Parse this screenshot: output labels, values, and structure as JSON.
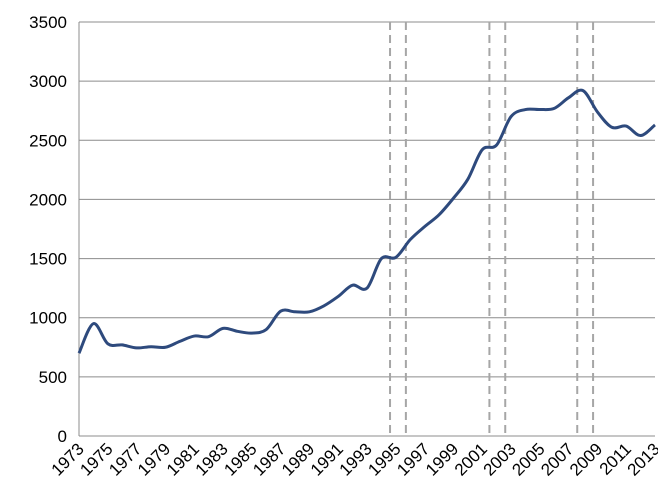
{
  "chart_data": {
    "type": "line",
    "x": [
      1973,
      1974,
      1975,
      1976,
      1977,
      1978,
      1979,
      1980,
      1981,
      1982,
      1983,
      1984,
      1985,
      1986,
      1987,
      1988,
      1989,
      1990,
      1991,
      1992,
      1993,
      1994,
      1995,
      1996,
      1997,
      1998,
      1999,
      2000,
      2001,
      2002,
      2003,
      2004,
      2005,
      2006,
      2007,
      2008,
      2009,
      2010,
      2011,
      2012,
      2013
    ],
    "series": [
      {
        "color": "#2e4a7d",
        "values": [
          700,
          950,
          780,
          770,
          745,
          755,
          750,
          800,
          845,
          840,
          910,
          885,
          870,
          900,
          1055,
          1050,
          1050,
          1100,
          1180,
          1275,
          1250,
          1500,
          1510,
          1660,
          1770,
          1870,
          2010,
          2170,
          2420,
          2460,
          2700,
          2760,
          2760,
          2770,
          2860,
          2920,
          2740,
          2610,
          2620,
          2540,
          2630
        ]
      }
    ],
    "xlim": [
      1973,
      2013
    ],
    "xticks": [
      1973,
      1975,
      1977,
      1979,
      1981,
      1983,
      1985,
      1987,
      1989,
      1991,
      1993,
      1995,
      1997,
      1999,
      2001,
      2003,
      2005,
      2007,
      2009,
      2011,
      2013
    ],
    "ylim": [
      0,
      3500
    ],
    "yticks": [
      0,
      500,
      1000,
      1500,
      2000,
      2500,
      3000,
      3500
    ],
    "grid": true,
    "reference_lines": {
      "x": [
        1994.6,
        1995.7,
        2001.5,
        2002.6,
        2007.6,
        2008.7
      ],
      "color": "#a6a6a6"
    }
  }
}
